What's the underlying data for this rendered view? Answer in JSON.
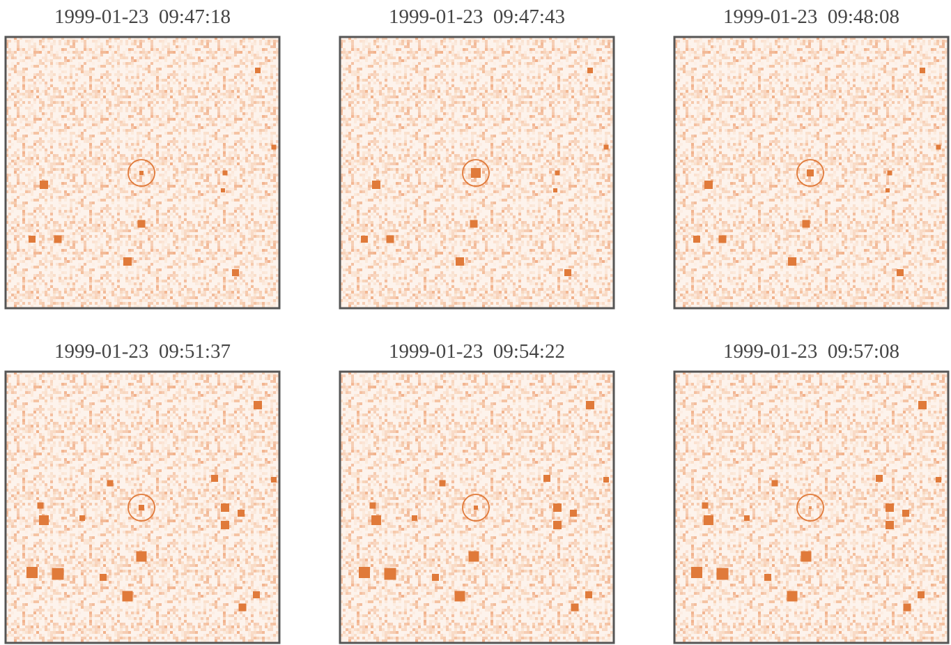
{
  "panels": [
    {
      "label": "1999-01-23  09:47:18"
    },
    {
      "label": "1999-01-23  09:47:43"
    },
    {
      "label": "1999-01-23  09:48:08"
    },
    {
      "label": "1999-01-23  09:51:37"
    },
    {
      "label": "1999-01-23  09:54:22"
    },
    {
      "label": "1999-01-23  09:57:08"
    }
  ]
}
